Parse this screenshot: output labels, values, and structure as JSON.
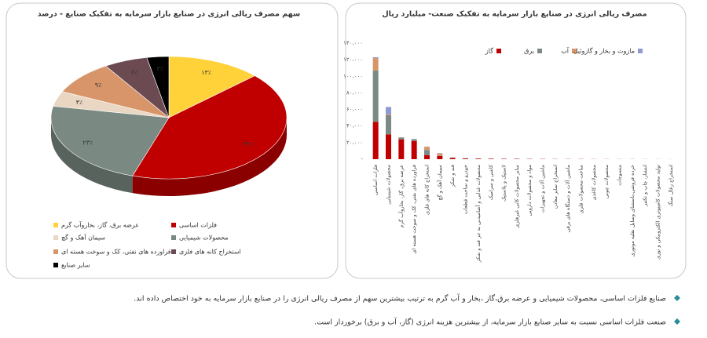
{
  "chart_data": [
    {
      "type": "pie",
      "title": "سهم مصرف ریالی انرژی در صنایع  بازار سرمایه به تفکیک صنایع - درصد",
      "categories": [
        "عرضه برق، گاز، بخاروآب گرم",
        "فلزات اساسی",
        "محصولات شیمیایی",
        "سیمان آهک و گچ",
        "فراورده های نفتی، کک و سوخت هسته ای",
        "استخراج کانه های فلزی",
        "سایر صنایع"
      ],
      "values": [
        13,
        42,
        23,
        4,
        9,
        6,
        3
      ],
      "value_labels": [
        "۱۳٪",
        "۴۲٪",
        "۲۳٪",
        "۴٪",
        "۹٪",
        "۶٪",
        "۳٪"
      ],
      "colors": [
        "#ffd23a",
        "#c00000",
        "#7a8a82",
        "#ead7c3",
        "#d9956a",
        "#6b4a52",
        "#000000"
      ]
    },
    {
      "type": "bar",
      "stacked": true,
      "title": "مصرف ریالی انرژی در صنایع بازار سرمایه به تفکیک صنعت- میلیارد ریال",
      "categories": [
        "فلزات اساسی",
        "محصولات شیمیایی",
        "عرضه برق، گاز، بخاروآب گرم",
        "فراورده های نفتی، کک و سوخت هسته ای",
        "استخراج کانه های فلزی",
        "سیمان آهک و گچ",
        "قند و شکر",
        "خودرو و ساخت قطعات",
        "محصولات غذایی و آشامیدنی به جز قند و شکر",
        "کاشی و سرامیک",
        "لاستیک و پلاستیک",
        "سایر محصولات کانی غیرفلزی",
        "مواد و محصولات دارویی",
        "ماشین آلات و تجهیزات",
        "استخراج سایر معادن",
        "ماشین آلات و دستگاه های برقی",
        "ساخت محصولات فلزی",
        "محصولات کاغذی",
        "محصولات چوبی",
        "منسوجات",
        "خرده فروشی،باستثنای وسایل نقلیه موتوری",
        "انتشار، چاپ و تکثیر",
        "تولید محصولات کامپیوتری الکترونیکی و نوری",
        "استخراج زغال سنگ"
      ],
      "series": [
        {
          "name": "گاز",
          "color": "#c00000",
          "values": [
            45000,
            30000,
            24000,
            22000,
            5000,
            4000,
            1500,
            800,
            600,
            500,
            400,
            400,
            300,
            300,
            200,
            200,
            200,
            150,
            100,
            100,
            100,
            80,
            50,
            50
          ]
        },
        {
          "name": "برق",
          "color": "#7b8b84",
          "values": [
            62000,
            23000,
            2000,
            2000,
            6000,
            500,
            300,
            400,
            300,
            200,
            200,
            200,
            200,
            100,
            200,
            100,
            100,
            100,
            100,
            50,
            50,
            50,
            50,
            20
          ]
        },
        {
          "name": "آب",
          "color": "#d9956a",
          "values": [
            15000,
            1000,
            300,
            200,
            4000,
            2500,
            200,
            100,
            200,
            50,
            50,
            50,
            50,
            50,
            50,
            20,
            20,
            20,
            20,
            20,
            10,
            10,
            10,
            10
          ]
        },
        {
          "name": "مازوت و بخار و گازوئیل",
          "color": "#8e9bd3",
          "values": [
            1000,
            9000,
            200,
            300,
            200,
            300,
            100,
            50,
            50,
            50,
            50,
            50,
            20,
            20,
            20,
            20,
            20,
            10,
            10,
            10,
            10,
            10,
            10,
            10
          ]
        }
      ],
      "ylim": [
        0,
        140000
      ],
      "yticks": [
        {
          "value": 0,
          "label": "-"
        },
        {
          "value": 20000,
          "label": "۲۰،۰۰۰"
        },
        {
          "value": 40000,
          "label": "۴۰،۰۰۰"
        },
        {
          "value": 60000,
          "label": "۶۰،۰۰۰"
        },
        {
          "value": 80000,
          "label": "۸۰،۰۰۰"
        },
        {
          "value": 100000,
          "label": "۱۰۰،۰۰۰"
        },
        {
          "value": 120000,
          "label": "۱۲۰،۰۰۰"
        },
        {
          "value": 140000,
          "label": "۱۴۰،۰۰۰"
        }
      ],
      "grid": false
    }
  ],
  "notes": [
    "صنایع فلزات اساسی، محصولات شیمیایی و عرضه برق،گاز ،بخار و آب گرم به ترتیب بیشترین سهم از مصرف ریالی انرژی را در صنایع بازار سرمایه به خود اختصاص داده اند.",
    "صنعت فلزات اساسی نسبت به سایر صنایع بازار سرمایه، از بیشترین هزینه انرژی (گاز، آب و برق) برخوردار است."
  ]
}
